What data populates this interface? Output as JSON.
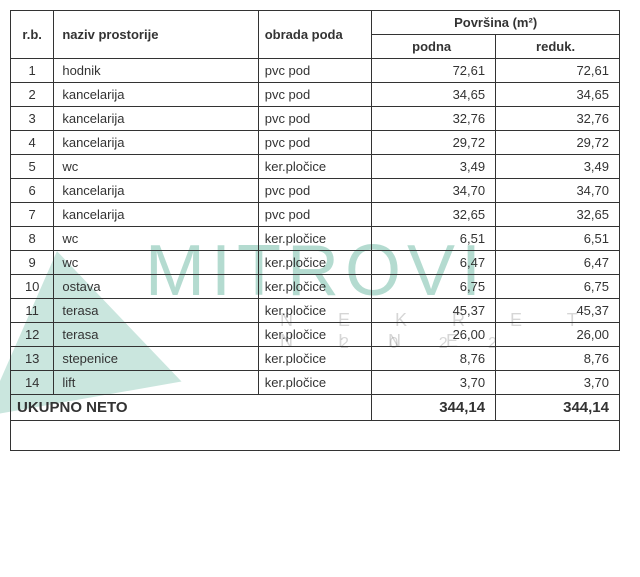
{
  "table": {
    "headers": {
      "rb": "r.b.",
      "naziv": "naziv  prostorije",
      "obrada": "obrada poda",
      "povrsina": "Površina (m²)",
      "podna": "podna",
      "reduk": "reduk."
    },
    "rows": [
      {
        "rb": "1",
        "naziv": "hodnik",
        "obrada": "pvc pod",
        "podna": "72,61",
        "reduk": "72,61"
      },
      {
        "rb": "2",
        "naziv": "kancelarija",
        "obrada": "pvc pod",
        "podna": "34,65",
        "reduk": "34,65"
      },
      {
        "rb": "3",
        "naziv": "kancelarija",
        "obrada": "pvc pod",
        "podna": "32,76",
        "reduk": "32,76"
      },
      {
        "rb": "4",
        "naziv": "kancelarija",
        "obrada": "pvc pod",
        "podna": "29,72",
        "reduk": "29,72"
      },
      {
        "rb": "5",
        "naziv": "wc",
        "obrada": "ker.pločice",
        "podna": "3,49",
        "reduk": "3,49"
      },
      {
        "rb": "6",
        "naziv": "kancelarija",
        "obrada": "pvc pod",
        "podna": "34,70",
        "reduk": "34,70"
      },
      {
        "rb": "7",
        "naziv": "kancelarija",
        "obrada": "pvc pod",
        "podna": "32,65",
        "reduk": "32,65"
      },
      {
        "rb": "8",
        "naziv": "wc",
        "obrada": "ker.pločice",
        "podna": "6,51",
        "reduk": "6,51"
      },
      {
        "rb": "9",
        "naziv": "wc",
        "obrada": "ker.pločice",
        "podna": "6,47",
        "reduk": "6,47"
      },
      {
        "rb": "10",
        "naziv": "ostava",
        "obrada": "ker.pločice",
        "podna": "6,75",
        "reduk": "6,75"
      },
      {
        "rb": "11",
        "naziv": "terasa",
        "obrada": "ker.pločice",
        "podna": "45,37",
        "reduk": "45,37"
      },
      {
        "rb": "12",
        "naziv": "terasa",
        "obrada": "ker.pločice",
        "podna": "26,00",
        "reduk": "26,00"
      },
      {
        "rb": "13",
        "naziv": "stepenice",
        "obrada": "ker.pločice",
        "podna": "8,76",
        "reduk": "8,76"
      },
      {
        "rb": "14",
        "naziv": "lift",
        "obrada": "ker.pločice",
        "podna": "3,70",
        "reduk": "3,70"
      }
    ],
    "total": {
      "label": "UKUPNO NETO",
      "podna": "344,14",
      "reduk": "344,14"
    }
  },
  "watermark": {
    "main": "MITROVI",
    "sub": "N E K R E T N I N E",
    "year": "2 0 2 2",
    "color": "#2a9a7a"
  },
  "colors": {
    "border": "#333333",
    "text": "#333333",
    "background": "#ffffff"
  },
  "typography": {
    "body_fontsize": 13,
    "header_fontweight": "bold",
    "total_fontsize": 15
  }
}
